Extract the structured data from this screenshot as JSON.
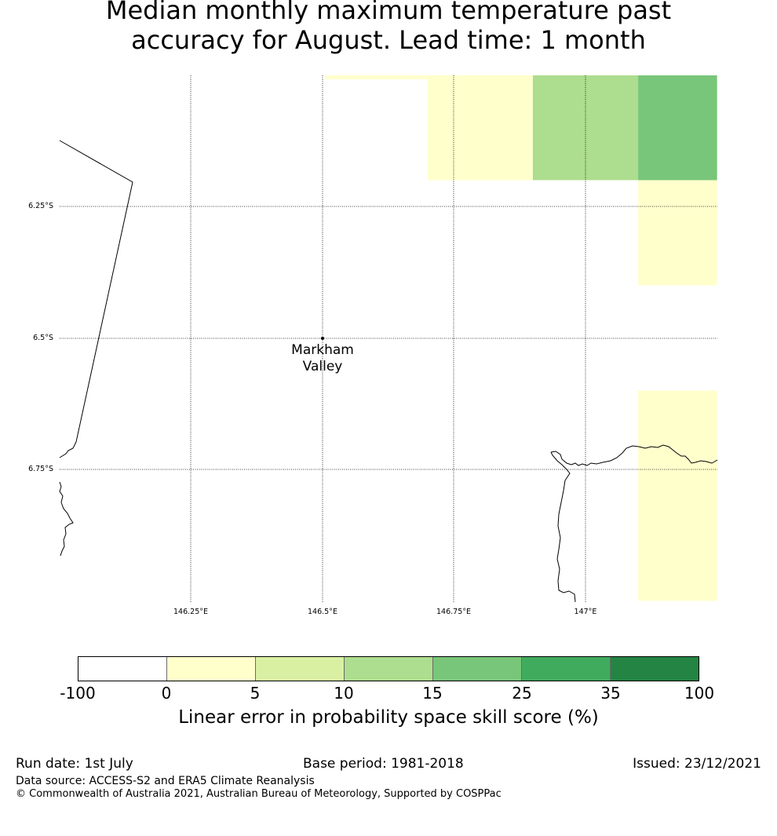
{
  "title": {
    "line1": "Median monthly maximum temperature past",
    "line2": "accuracy for August. Lead time: 1 month"
  },
  "map": {
    "lat_labels": [
      "6.25°S",
      "6.5°S",
      "6.75°S"
    ],
    "lon_labels": [
      "146.25°E",
      "146.5°E",
      "146.75°E",
      "147°E"
    ],
    "place": {
      "line1": "Markham",
      "line2": "Valley"
    },
    "cells": [
      {
        "bin": 1,
        "lon": [
          146.5,
          146.7
        ],
        "lat": [
          -5.98,
          -6.0
        ],
        "note": "thin strip"
      },
      {
        "bin": 4,
        "lon": [
          146.7,
          146.9
        ],
        "lat": [
          -5.98,
          -6.0
        ]
      },
      {
        "bin": 5,
        "lon": [
          146.9,
          147.25
        ],
        "lat": [
          -5.98,
          -6.0
        ]
      },
      {
        "bin": 1,
        "lon": [
          146.7,
          146.9
        ],
        "lat": [
          -6.0,
          -6.2
        ]
      },
      {
        "bin": 3,
        "lon": [
          146.9,
          147.1
        ],
        "lat": [
          -6.0,
          -6.2
        ]
      },
      {
        "bin": 4,
        "lon": [
          147.1,
          147.25
        ],
        "lat": [
          -6.0,
          -6.2
        ]
      },
      {
        "bin": 1,
        "lon": [
          147.1,
          147.25
        ],
        "lat": [
          -6.2,
          -6.4
        ]
      },
      {
        "bin": 1,
        "lon": [
          147.1,
          147.25
        ],
        "lat": [
          -6.6,
          -7.0
        ]
      }
    ]
  },
  "colorbar": {
    "ticks": [
      "-100",
      "0",
      "5",
      "10",
      "15",
      "25",
      "35",
      "100"
    ],
    "colors": [
      "#ffffff",
      "#ffffcc",
      "#d9f0a3",
      "#addd8e",
      "#78c679",
      "#41ab5d",
      "#238443"
    ],
    "label": "Linear error in probability space skill score (%)"
  },
  "footer": {
    "run_date": "Run date: 1st July",
    "base_period": "Base period: 1981-2018",
    "issued": "Issued: 23/12/2021",
    "data_source": "Data source: ACCESS-S2 and ERA5 Climate Reanalysis",
    "copyright": "© Commonwealth of Australia 2021, Australian Bureau of Meteorology, Supported by COSPPac"
  }
}
